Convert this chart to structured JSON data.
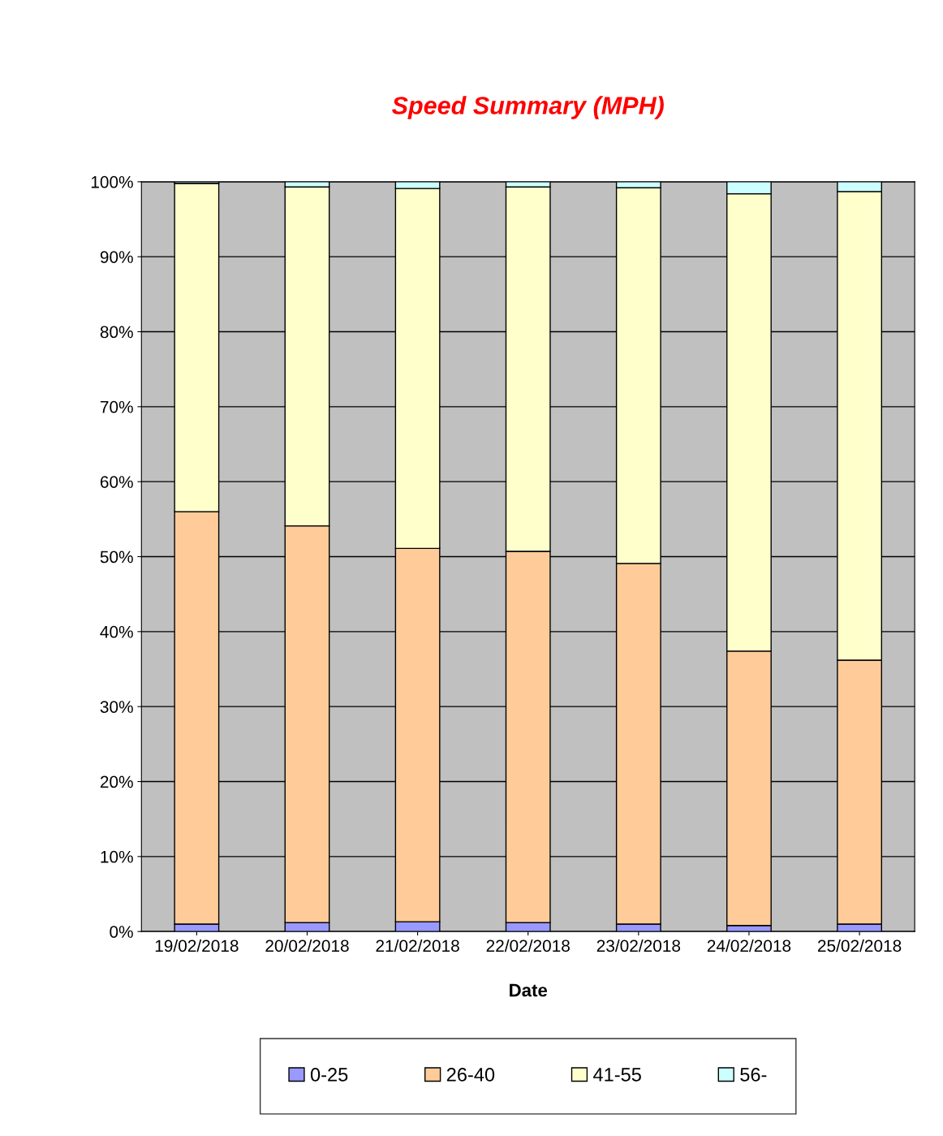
{
  "chart_data": {
    "type": "bar",
    "stacked": true,
    "title": "Speed Summary (MPH)",
    "xlabel": "Date",
    "categories": [
      "19/02/2018",
      "20/02/2018",
      "21/02/2018",
      "22/02/2018",
      "23/02/2018",
      "24/02/2018",
      "25/02/2018"
    ],
    "series": [
      {
        "name": "0-25",
        "color": "#9999ff",
        "values": [
          1.0,
          1.2,
          1.3,
          1.2,
          1.0,
          0.8,
          1.0
        ]
      },
      {
        "name": "26-40",
        "color": "#ffcc99",
        "values": [
          55.0,
          52.9,
          49.8,
          49.5,
          48.1,
          36.6,
          35.2
        ]
      },
      {
        "name": "41-55",
        "color": "#ffffcc",
        "values": [
          43.8,
          45.2,
          48.0,
          48.6,
          50.1,
          61.0,
          62.5
        ]
      },
      {
        "name": "56-",
        "color": "#ccffff",
        "values": [
          0.2,
          0.7,
          0.9,
          0.7,
          0.8,
          1.6,
          1.3
        ]
      }
    ],
    "ylim": [
      0,
      100
    ],
    "yticks": [
      {
        "value": 0,
        "label": "0%"
      },
      {
        "value": 10,
        "label": "10%"
      },
      {
        "value": 20,
        "label": "20%"
      },
      {
        "value": 30,
        "label": "30%"
      },
      {
        "value": 40,
        "label": "40%"
      },
      {
        "value": 50,
        "label": "50%"
      },
      {
        "value": 60,
        "label": "60%"
      },
      {
        "value": 70,
        "label": "70%"
      },
      {
        "value": 80,
        "label": "80%"
      },
      {
        "value": 90,
        "label": "90%"
      },
      {
        "value": 100,
        "label": "100%"
      }
    ],
    "grid": "y",
    "legend": "bottom"
  }
}
